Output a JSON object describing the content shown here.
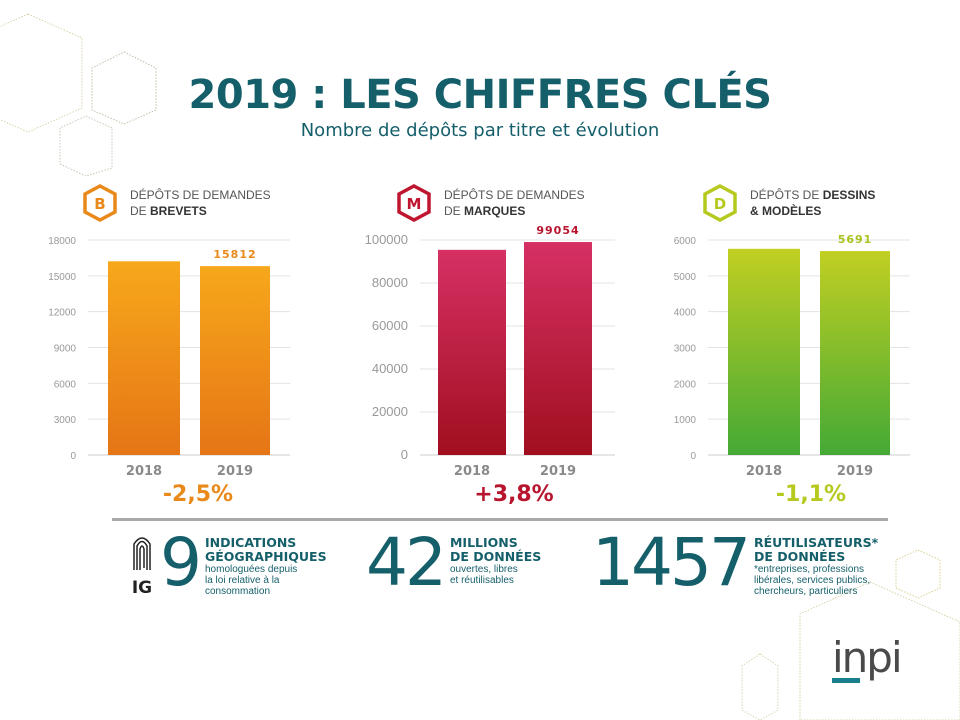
{
  "header": {
    "title": "2019 : LES CHIFFRES CLÉS",
    "subtitle": "Nombre de dépôts par titre et évolution"
  },
  "chart_data": [
    {
      "type": "bar",
      "id": "brevets",
      "badge_letter": "B",
      "title_line1": "DÉPÔTS DE DEMANDES",
      "title_line2_prefix": "DE ",
      "title_line2_bold": "BREVETS",
      "categories": [
        "2018",
        "2019"
      ],
      "values": [
        16218,
        15812
      ],
      "value_labels": [
        "",
        "15812"
      ],
      "ylim": [
        0,
        18000
      ],
      "yticks": [
        0,
        3000,
        6000,
        9000,
        12000,
        15000,
        18000
      ],
      "grid": true,
      "change": "-2,5%",
      "colors": {
        "top": "#f7a81b",
        "bottom": "#e57516",
        "label": "#e8891a"
      }
    },
    {
      "type": "bar",
      "id": "marques",
      "badge_letter": "M",
      "title_line1": "DÉPÔTS DE DEMANDES",
      "title_line2_prefix": "DE ",
      "title_line2_bold": "MARQUES",
      "categories": [
        "2018",
        "2019"
      ],
      "values": [
        95428,
        99054
      ],
      "value_labels": [
        "",
        "99054"
      ],
      "ylim": [
        0,
        100000
      ],
      "yticks": [
        0,
        20000,
        40000,
        60000,
        80000,
        100000
      ],
      "grid": true,
      "change": "+3,8%",
      "colors": {
        "top": "#d63064",
        "bottom": "#a10f1f",
        "label": "#b8142e"
      }
    },
    {
      "type": "bar",
      "id": "dessins",
      "badge_letter": "D",
      "title_line1_prefix": "DÉPÔTS DE ",
      "title_line1_bold": "DESSINS",
      "title_line2_bold": "& MODÈLES",
      "categories": [
        "2018",
        "2019"
      ],
      "values": [
        5754,
        5691
      ],
      "value_labels": [
        "",
        "5691"
      ],
      "ylim": [
        0,
        6000
      ],
      "yticks": [
        0,
        1000,
        2000,
        3000,
        4000,
        5000,
        6000
      ],
      "grid": true,
      "change": "-1,1%",
      "colors": {
        "top": "#c1cf22",
        "bottom": "#44a935",
        "label": "#a8c41e"
      }
    }
  ],
  "stats": [
    {
      "icon": "fingerprint-ig-icon",
      "icon_label": "IG",
      "number": "9",
      "title_line1": "INDICATIONS",
      "title_line2": "GÉOGRAPHIQUES",
      "desc": [
        "homologuées depuis",
        "la loi relative à la",
        "consommation"
      ]
    },
    {
      "number": "42",
      "title_line1": "MILLIONS",
      "title_line2": "DE DONNÉES",
      "desc": [
        "ouvertes, libres",
        "et réutilisables"
      ]
    },
    {
      "number": "1457",
      "title_line1": "RÉUTILISATEURS*",
      "title_line2": "DE DONNÉES",
      "desc": [
        "*entreprises, professions",
        "libérales, services publics,",
        "chercheurs, particuliers"
      ]
    }
  ],
  "logo": {
    "text": "inpi",
    "text_color": "#4a4a4a",
    "accent": "#1a7f8c"
  },
  "theme": {
    "primary": "#155f6b"
  }
}
